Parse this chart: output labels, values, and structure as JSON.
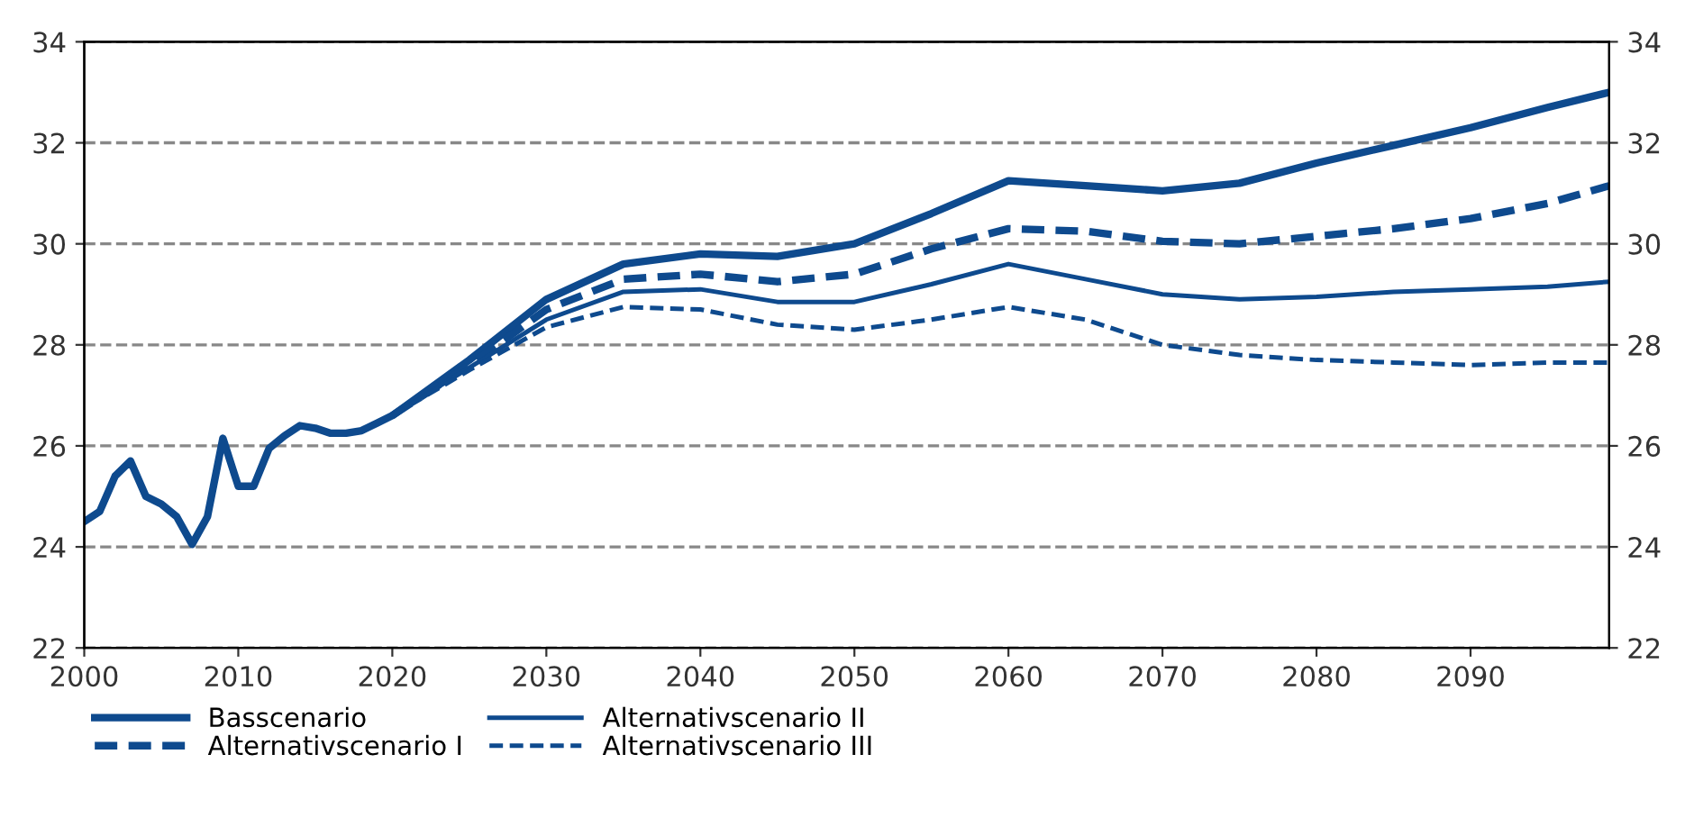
{
  "chart_data": {
    "type": "line",
    "grid": "y",
    "legend": "bottom",
    "xlim": [
      2000,
      2099
    ],
    "xticks": [
      2000,
      2010,
      2020,
      2030,
      2040,
      2050,
      2060,
      2070,
      2080,
      2090
    ],
    "ylim": [
      22,
      34
    ],
    "yticks": [
      22,
      24,
      26,
      28,
      30,
      32,
      34
    ],
    "y2lim": [
      22,
      34
    ],
    "y2ticks": [
      22,
      24,
      26,
      28,
      30,
      32,
      34
    ],
    "series": [
      {
        "name": "Basscenario",
        "color": "#0e4a8e",
        "line_style": "solid",
        "x": [
          2000,
          2001,
          2002,
          2003,
          2004,
          2005,
          2006,
          2007,
          2008,
          2009,
          2010,
          2011,
          2012,
          2013,
          2014,
          2015,
          2016,
          2017,
          2018,
          2019,
          2020,
          2025,
          2030,
          2035,
          2040,
          2045,
          2050,
          2055,
          2060,
          2065,
          2070,
          2075,
          2080,
          2085,
          2090,
          2095,
          2099
        ],
        "values": [
          24.5,
          24.7,
          25.4,
          25.7,
          25.0,
          24.85,
          24.6,
          24.05,
          24.6,
          26.15,
          25.2,
          25.2,
          25.95,
          26.2,
          26.4,
          26.35,
          26.25,
          26.25,
          26.3,
          26.45,
          26.6,
          27.7,
          28.9,
          29.6,
          29.8,
          29.75,
          30.0,
          30.6,
          31.25,
          31.15,
          31.05,
          31.2,
          31.6,
          31.95,
          32.3,
          32.7,
          33.0
        ]
      },
      {
        "name": "Alternativscenario I",
        "color": "#0e4a8e",
        "line_style": "dashed",
        "x": [
          2020,
          2025,
          2030,
          2035,
          2040,
          2045,
          2050,
          2055,
          2060,
          2065,
          2070,
          2075,
          2080,
          2085,
          2090,
          2095,
          2099
        ],
        "values": [
          26.6,
          27.6,
          28.7,
          29.3,
          29.4,
          29.25,
          29.4,
          29.9,
          30.3,
          30.25,
          30.05,
          30.0,
          30.15,
          30.3,
          30.5,
          30.8,
          31.15
        ]
      },
      {
        "name": "Alternativscenario II",
        "color": "#0e4a8e",
        "line_style": "solid",
        "x": [
          2020,
          2025,
          2030,
          2035,
          2040,
          2045,
          2050,
          2055,
          2060,
          2065,
          2070,
          2075,
          2080,
          2085,
          2090,
          2095,
          2099
        ],
        "values": [
          26.6,
          27.55,
          28.5,
          29.05,
          29.1,
          28.85,
          28.85,
          29.2,
          29.6,
          29.3,
          29.0,
          28.9,
          28.95,
          29.05,
          29.1,
          29.15,
          29.25
        ]
      },
      {
        "name": "Alternativscenario III",
        "color": "#0e4a8e",
        "line_style": "dashed",
        "x": [
          2020,
          2025,
          2030,
          2035,
          2040,
          2045,
          2050,
          2055,
          2060,
          2065,
          2070,
          2075,
          2080,
          2085,
          2090,
          2095,
          2099
        ],
        "values": [
          26.6,
          27.5,
          28.35,
          28.75,
          28.7,
          28.4,
          28.3,
          28.5,
          28.75,
          28.5,
          28.0,
          27.8,
          27.7,
          27.65,
          27.6,
          27.65,
          27.65
        ]
      }
    ]
  }
}
